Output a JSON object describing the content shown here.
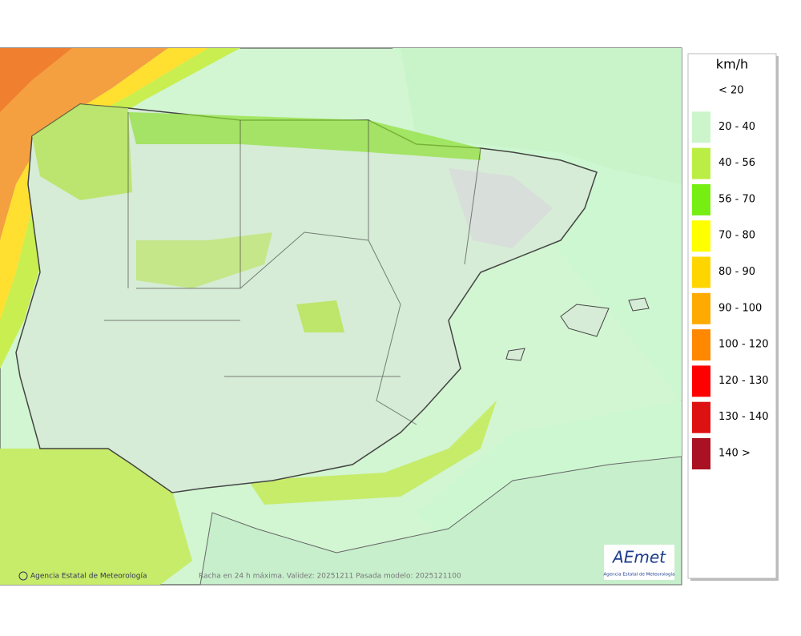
{
  "legend": {
    "title": "km/h",
    "items": [
      {
        "label": "< 20",
        "color": "#ffffff"
      },
      {
        "label": "20 - 40",
        "color": "#ccf5cc"
      },
      {
        "label": "40 - 56",
        "color": "#bbee44"
      },
      {
        "label": "56 - 70",
        "color": "#77ee11"
      },
      {
        "label": "70 - 80",
        "color": "#ffff00"
      },
      {
        "label": "80 - 90",
        "color": "#ffd500"
      },
      {
        "label": "90 - 100",
        "color": "#ffaa00"
      },
      {
        "label": "100 - 120",
        "color": "#ff8800"
      },
      {
        "label": "120 - 130",
        "color": "#ff0000"
      },
      {
        "label": "130 - 140",
        "color": "#dd1111"
      },
      {
        "label": "140 >",
        "color": "#aa1122"
      }
    ]
  },
  "footer": {
    "credit": "Agencia Estatal de Meteorología",
    "caption": "Racha en 24 h máxima. Validez: 20251211 Pasada modelo: 2025121100"
  },
  "logo": {
    "name": "AEmet",
    "subtitle": "Agencia Estatal de Meteorología"
  }
}
